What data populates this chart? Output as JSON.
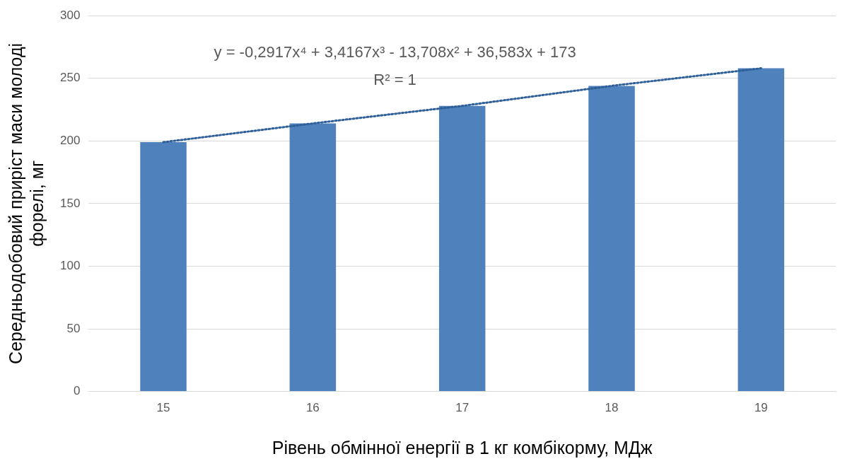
{
  "chart_data": {
    "type": "bar",
    "xlabel": "Рівень обмінної енергії в 1 кг комбікорму, МДж",
    "ylabel": "Середньодобовий приріст маси молоді форелі, мг",
    "categories": [
      "15",
      "16",
      "17",
      "18",
      "19"
    ],
    "series": [
      {
        "color": "#4f81bd",
        "values": [
          199,
          214,
          228,
          244,
          258
        ]
      },
      {
        "type": "line",
        "color": "#2f5f98",
        "values": [
          199,
          214,
          228,
          244,
          258
        ],
        "line_style": "dotted",
        "marker": "none"
      }
    ],
    "ylim": [
      0,
      300
    ],
    "yticks": [
      0,
      50,
      100,
      150,
      200,
      250,
      300
    ],
    "grid": "y",
    "legend": false,
    "annotations": [
      "y = -0,2917x⁴ + 3,4167x³ - 13,708x² + 36,583x + 173",
      "R² = 1"
    ]
  }
}
